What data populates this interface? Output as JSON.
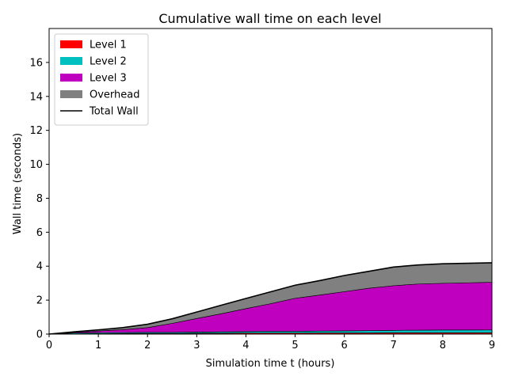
{
  "chart_data": {
    "type": "area",
    "title": "Cumulative wall time on each level",
    "xlabel": "Simulation time t (hours)",
    "ylabel": "Wall time (seconds)",
    "xlim": [
      0,
      9
    ],
    "ylim": [
      0,
      18
    ],
    "xticks": [
      0,
      1,
      2,
      3,
      4,
      5,
      6,
      7,
      8,
      9
    ],
    "yticks": [
      0,
      2,
      4,
      6,
      8,
      10,
      12,
      14,
      16
    ],
    "grid": false,
    "legend_position": "top-left",
    "x": [
      0,
      0.5,
      1,
      1.5,
      2,
      2.5,
      3,
      3.5,
      4,
      4.5,
      5,
      5.5,
      6,
      6.5,
      7,
      7.5,
      8,
      8.5,
      9
    ],
    "series": [
      {
        "name": "Level 1",
        "color": "#ff0000",
        "values": [
          0,
          0.01,
          0.02,
          0.03,
          0.04,
          0.04,
          0.05,
          0.05,
          0.06,
          0.06,
          0.06,
          0.07,
          0.07,
          0.07,
          0.08,
          0.08,
          0.08,
          0.08,
          0.08
        ]
      },
      {
        "name": "Level 2",
        "color": "#00bfbf",
        "values": [
          0,
          0.05,
          0.06,
          0.06,
          0.06,
          0.06,
          0.07,
          0.08,
          0.09,
          0.1,
          0.1,
          0.11,
          0.12,
          0.13,
          0.14,
          0.15,
          0.16,
          0.16,
          0.17
        ]
      },
      {
        "name": "Level 3",
        "color": "#bf00bf",
        "values": [
          0,
          0.04,
          0.1,
          0.17,
          0.28,
          0.53,
          0.8,
          1.07,
          1.35,
          1.63,
          1.95,
          2.12,
          2.31,
          2.5,
          2.63,
          2.72,
          2.75,
          2.78,
          2.8
        ]
      },
      {
        "name": "Overhead",
        "color": "#808080",
        "values": [
          0,
          0.03,
          0.07,
          0.12,
          0.2,
          0.27,
          0.38,
          0.5,
          0.6,
          0.7,
          0.77,
          0.85,
          0.95,
          1.0,
          1.1,
          1.12,
          1.15,
          1.15,
          1.15
        ]
      }
    ],
    "total_wall": {
      "name": "Total Wall",
      "color": "#000000",
      "values": [
        0,
        0.13,
        0.25,
        0.38,
        0.58,
        0.9,
        1.3,
        1.7,
        2.1,
        2.49,
        2.88,
        3.15,
        3.45,
        3.7,
        3.95,
        4.07,
        4.14,
        4.17,
        4.2
      ]
    }
  }
}
